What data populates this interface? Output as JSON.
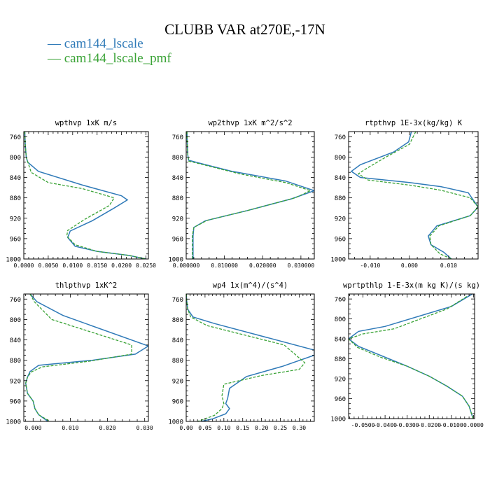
{
  "title": "CLUBB VAR at270E,-17N",
  "legend": [
    {
      "label": "— cam144_lscale",
      "color": "#2f7ab8"
    },
    {
      "label": "— cam144_lscale_pmf",
      "color": "#3aa336"
    }
  ],
  "chart_data": [
    {
      "type": "line",
      "title": "wpthvp  1xK m/s",
      "xticks": [
        0.0,
        0.005,
        0.01,
        0.015,
        0.02,
        0.025
      ],
      "xtick_labels": [
        "0.0000",
        "0.0050",
        "0.0100",
        "0.0150",
        "0.0200",
        "0.0250"
      ],
      "xlim": [
        0.0,
        0.0255
      ],
      "ylim": [
        1000,
        750
      ],
      "yticks": [
        760,
        800,
        840,
        880,
        920,
        960,
        1000
      ],
      "series": [
        {
          "x": [
            0.0002,
            0.0003,
            0.0005,
            0.0008,
            0.003,
            0.012,
            0.02,
            0.0212,
            0.0185,
            0.014,
            0.0095,
            0.009,
            0.0105,
            0.015,
            0.0215,
            0.025
          ],
          "y": [
            750,
            775,
            800,
            810,
            828,
            855,
            876,
            884,
            900,
            925,
            945,
            958,
            975,
            985,
            993,
            1000
          ]
        },
        {
          "x": [
            0.0002,
            0.0003,
            0.0005,
            0.0009,
            0.0015,
            0.005,
            0.012,
            0.0185,
            0.0175,
            0.0125,
            0.009,
            0.0088,
            0.0105,
            0.015,
            0.0215,
            0.025
          ],
          "y": [
            750,
            775,
            800,
            812,
            830,
            850,
            862,
            880,
            895,
            922,
            944,
            955,
            972,
            985,
            993,
            1000
          ]
        }
      ]
    },
    {
      "type": "line",
      "title": "wp2thvp  1xK m^2/s^2",
      "xticks": [
        0.0,
        0.01,
        0.02,
        0.03
      ],
      "xtick_labels": [
        "0.000000",
        "0.010000",
        "0.020000",
        "0.030000"
      ],
      "xlim": [
        0.0,
        0.0335
      ],
      "ylim": [
        1000,
        750
      ],
      "yticks": [
        760,
        800,
        840,
        880,
        920,
        960,
        1000
      ],
      "series": [
        {
          "x": [
            0.0002,
            0.0003,
            0.0004,
            0.0006,
            0.0035,
            0.012,
            0.026,
            0.0335,
            0.0275,
            0.016,
            0.005,
            0.002,
            0.0018,
            0.0018,
            0.0018,
            0.0018
          ],
          "y": [
            750,
            775,
            795,
            806,
            812,
            828,
            847,
            866,
            882,
            905,
            925,
            938,
            955,
            965,
            985,
            1000
          ]
        },
        {
          "x": [
            0.0002,
            0.0003,
            0.0004,
            0.0007,
            0.0045,
            0.014,
            0.026,
            0.0325,
            0.0285,
            0.017,
            0.0055,
            0.002,
            0.0016,
            0.0016,
            0.0016,
            0.0016
          ],
          "y": [
            750,
            775,
            795,
            808,
            815,
            833,
            850,
            866,
            880,
            903,
            924,
            938,
            955,
            965,
            985,
            1000
          ]
        }
      ]
    },
    {
      "type": "line",
      "title": "rtpthvp  1E-3x(kg/kg) K",
      "xticks": [
        -0.01,
        0.0,
        0.01
      ],
      "xtick_labels": [
        "-0.010",
        "0.000",
        "0.010"
      ],
      "xlim": [
        -0.0155,
        0.0175
      ],
      "ylim": [
        1000,
        750
      ],
      "yticks": [
        760,
        800,
        840,
        880,
        920,
        960,
        1000
      ],
      "series": [
        {
          "x": [
            0.0005,
            -0.0002,
            -0.004,
            -0.0125,
            -0.0148,
            -0.0125,
            0.0,
            0.008,
            0.015,
            0.0175,
            0.0155,
            0.007,
            0.0048,
            0.0055,
            0.0088,
            0.0107
          ],
          "y": [
            750,
            770,
            790,
            815,
            828,
            840,
            850,
            858,
            870,
            898,
            915,
            935,
            955,
            972,
            987,
            1000
          ]
        },
        {
          "x": [
            0.0016,
            0.0,
            -0.006,
            -0.0115,
            -0.013,
            -0.0105,
            0.0,
            0.008,
            0.0155,
            0.0175,
            0.0155,
            0.0075,
            0.0052,
            0.0055,
            0.0078,
            0.0108
          ],
          "y": [
            750,
            775,
            800,
            825,
            833,
            845,
            855,
            865,
            880,
            898,
            915,
            935,
            955,
            972,
            990,
            1000
          ]
        }
      ]
    },
    {
      "type": "line",
      "title": "thlpthvp  1xK^2",
      "xticks": [
        0.0,
        0.01,
        0.02,
        0.03
      ],
      "xtick_labels": [
        "0.000",
        "0.010",
        "0.020",
        "0.030"
      ],
      "xlim": [
        -0.0025,
        0.031
      ],
      "ylim": [
        1000,
        750
      ],
      "yticks": [
        760,
        800,
        840,
        880,
        920,
        960,
        1000
      ],
      "series": [
        {
          "x": [
            -0.0008,
            0.001,
            0.008,
            0.031,
            0.0275,
            0.016,
            0.0015,
            -0.0008,
            -0.0015,
            -0.002,
            -0.0015,
            0.0,
            0.0005,
            0.0015,
            0.004
          ],
          "y": [
            750,
            765,
            792,
            852,
            868,
            880,
            890,
            902,
            913,
            925,
            945,
            960,
            975,
            987,
            1000
          ]
        },
        {
          "x": [
            -0.0008,
            0.0003,
            0.005,
            0.0265,
            0.0265,
            0.015,
            0.0025,
            -0.0005,
            -0.0015,
            -0.002,
            -0.0015,
            0.0,
            0.0005,
            0.0015,
            0.0045
          ],
          "y": [
            750,
            765,
            800,
            850,
            868,
            882,
            893,
            903,
            913,
            925,
            945,
            960,
            975,
            987,
            1000
          ]
        }
      ]
    },
    {
      "type": "line",
      "title": "wp4  1x(m^4)/(s^4)",
      "xticks": [
        0.0,
        0.05,
        0.1,
        0.15,
        0.2,
        0.25,
        0.3
      ],
      "xtick_labels": [
        "0.00",
        "0.05",
        "0.10",
        "0.15",
        "0.20",
        "0.25",
        "0.30"
      ],
      "xlim": [
        0.0,
        0.34
      ],
      "ylim": [
        1000,
        750
      ],
      "yticks": [
        760,
        800,
        840,
        880,
        920,
        960,
        1000
      ],
      "series": [
        {
          "x": [
            0.0005,
            0.001,
            0.004,
            0.018,
            0.075,
            0.34,
            0.34,
            0.255,
            0.16,
            0.115,
            0.11,
            0.105,
            0.115,
            0.105,
            0.07,
            0.04
          ],
          "y": [
            750,
            760,
            780,
            795,
            808,
            860,
            870,
            892,
            912,
            935,
            955,
            965,
            975,
            985,
            995,
            1000
          ]
        },
        {
          "x": [
            0.0005,
            0.001,
            0.004,
            0.012,
            0.055,
            0.26,
            0.315,
            0.3,
            0.2,
            0.1,
            0.095,
            0.1,
            0.095,
            0.075,
            0.05,
            0.03
          ],
          "y": [
            750,
            760,
            780,
            795,
            812,
            850,
            885,
            898,
            910,
            927,
            950,
            965,
            975,
            988,
            995,
            1000
          ]
        }
      ]
    },
    {
      "type": "line",
      "title": "wprtpthlp  1-E-3x(m kg K)/(s kg)",
      "xticks": [
        -0.05,
        -0.04,
        -0.03,
        -0.02,
        -0.01,
        0.0
      ],
      "xtick_labels": [
        "-0.0500",
        "-0.0400",
        "-0.0300",
        "-0.0200",
        "-0.0100",
        "0.0000"
      ],
      "xlim": [
        -0.0565,
        0.0005
      ],
      "ylim": [
        1000,
        750
      ],
      "yticks": [
        760,
        800,
        840,
        880,
        920,
        960,
        1000
      ],
      "series": [
        {
          "x": [
            -0.0005,
            -0.01,
            -0.04,
            -0.052,
            -0.0565,
            -0.052,
            -0.041,
            -0.03,
            -0.02,
            -0.012,
            -0.005,
            -0.002,
            -0.0002
          ],
          "y": [
            750,
            775,
            815,
            825,
            840,
            855,
            875,
            895,
            915,
            935,
            955,
            975,
            1000
          ]
        },
        {
          "x": [
            -0.003,
            -0.012,
            -0.036,
            -0.05,
            -0.0565,
            -0.0525,
            -0.042,
            -0.03,
            -0.02,
            -0.012,
            -0.005,
            -0.002,
            -0.0002
          ],
          "y": [
            755,
            780,
            820,
            830,
            840,
            857,
            877,
            895,
            915,
            935,
            955,
            975,
            1000
          ]
        }
      ]
    }
  ]
}
